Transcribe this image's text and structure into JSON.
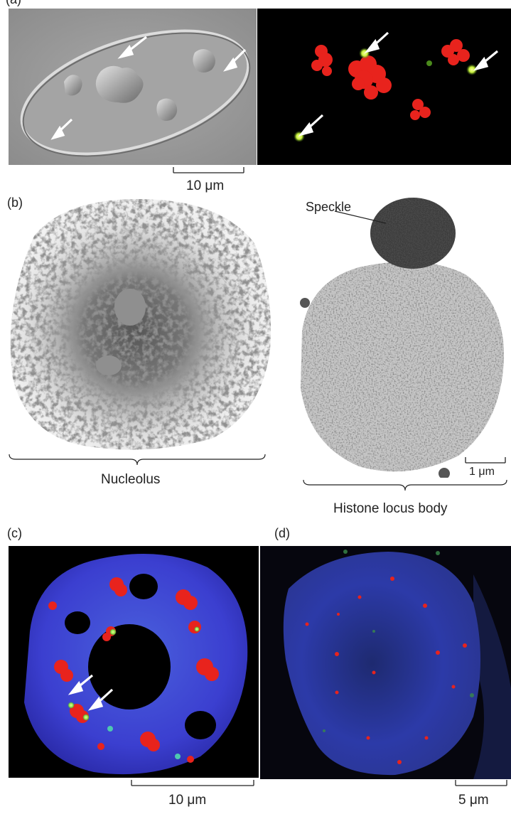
{
  "figure": {
    "panels": [
      {
        "id": "a",
        "label": "(a)"
      },
      {
        "id": "b",
        "label": "(b)"
      },
      {
        "id": "c",
        "label": "(c)"
      },
      {
        "id": "d",
        "label": "(d)"
      }
    ],
    "scale_bars": {
      "a": "10 μm",
      "b": "1 μm",
      "c": "10 μm",
      "d": "5 μm"
    },
    "annotations": {
      "speckle": "Speckle",
      "nucleolus": "Nucleolus",
      "histone_locus_body": "Histone locus body"
    },
    "colors": {
      "chromatin_red": "#e8231d",
      "body_green": "#c6f03a",
      "dna_blue": "#3b3fd0",
      "dic_gray": "#9a9a9a",
      "background_black": "#000000"
    }
  }
}
